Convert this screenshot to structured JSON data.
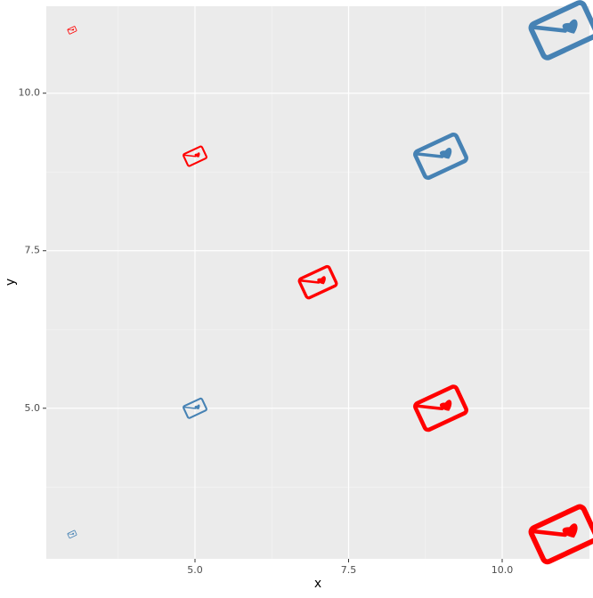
{
  "chart_data": {
    "type": "scatter",
    "x_label": "x",
    "y_label": "y",
    "xlim": [
      2.58,
      11.42
    ],
    "ylim": [
      2.61,
      11.38
    ],
    "xticks": [
      {
        "value": 5,
        "label": "5.0"
      },
      {
        "value": 7.5,
        "label": "7.5"
      },
      {
        "value": 10,
        "label": "10.0"
      }
    ],
    "yticks": [
      {
        "value": 5,
        "label": "5.0"
      },
      {
        "value": 7.5,
        "label": "7.5"
      },
      {
        "value": 10,
        "label": "10.0"
      }
    ],
    "grid": true,
    "series": [
      {
        "color": "#ff0000",
        "x": [
          3,
          5,
          7,
          9,
          11
        ],
        "values": [
          11,
          9,
          7,
          5,
          3
        ]
      },
      {
        "color": "#4682b4",
        "x": [
          3,
          5,
          9,
          11
        ],
        "values": [
          3,
          5,
          9,
          11
        ]
      }
    ]
  }
}
